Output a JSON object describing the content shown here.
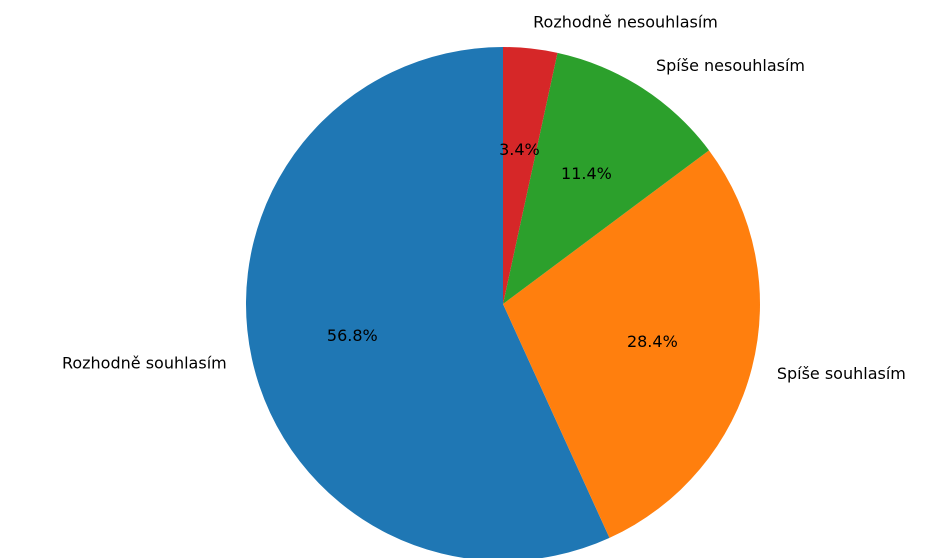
{
  "chart_data": {
    "type": "pie",
    "categories": [
      "Rozhodně souhlasím",
      "Spíše souhlasím",
      "Spíše nesouhlasím",
      "Rozhodně nesouhlasím"
    ],
    "values": [
      56.8,
      28.4,
      11.4,
      3.4
    ],
    "value_labels": [
      "56.8%",
      "28.4%",
      "11.4%",
      "3.4%"
    ],
    "colors": [
      "#1f77b4",
      "#ff7f0e",
      "#2ca02c",
      "#d62728"
    ]
  }
}
